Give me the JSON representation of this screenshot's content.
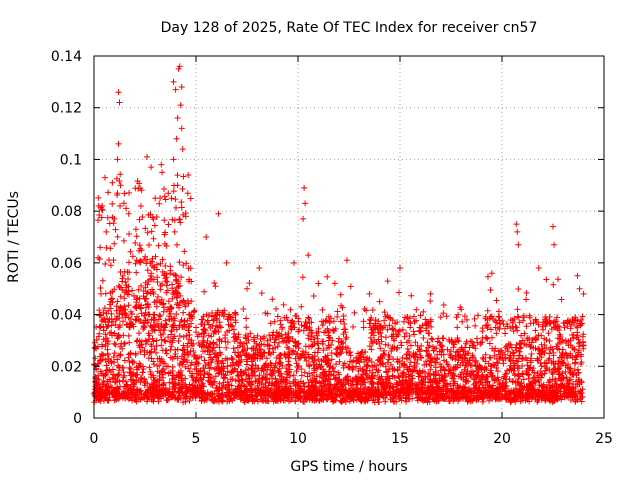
{
  "chart_data": {
    "type": "scatter",
    "title": "Day 128 of 2025, Rate Of TEC Index for receiver cn57",
    "xlabel": "GPS time / hours",
    "ylabel": "ROTI / TECUs",
    "xlim": [
      0,
      25
    ],
    "ylim": [
      0,
      0.14
    ],
    "xticks": [
      0,
      5,
      10,
      15,
      20,
      25
    ],
    "yticks": [
      0,
      0.02,
      0.04,
      0.06,
      0.08,
      0.1,
      0.12,
      0.14
    ],
    "xtick_labels": [
      "0",
      "5",
      "10",
      "15",
      "20",
      "25"
    ],
    "ytick_labels": [
      "0",
      "0.02",
      "0.04",
      "0.06",
      "0.08",
      "0.1",
      "0.12",
      "0.14"
    ],
    "grid": true,
    "legend": "none",
    "marker": "+",
    "color": "#ff0000",
    "data_summary": {
      "x_range_hours": [
        0,
        24
      ],
      "typical_roti_band": [
        0.005,
        0.035
      ],
      "max_roti": 0.136,
      "max_roti_time_hours": 4.2
    },
    "notable_points": [
      {
        "x": 1.2,
        "y": 0.126
      },
      {
        "x": 1.25,
        "y": 0.122
      },
      {
        "x": 1.2,
        "y": 0.106
      },
      {
        "x": 1.15,
        "y": 0.1
      },
      {
        "x": 0.9,
        "y": 0.091
      },
      {
        "x": 1.3,
        "y": 0.09
      },
      {
        "x": 2.6,
        "y": 0.101
      },
      {
        "x": 2.8,
        "y": 0.097
      },
      {
        "x": 3.3,
        "y": 0.098
      },
      {
        "x": 3.9,
        "y": 0.13
      },
      {
        "x": 4.0,
        "y": 0.127
      },
      {
        "x": 4.15,
        "y": 0.135
      },
      {
        "x": 4.2,
        "y": 0.136
      },
      {
        "x": 4.3,
        "y": 0.128
      },
      {
        "x": 4.25,
        "y": 0.121
      },
      {
        "x": 4.1,
        "y": 0.116
      },
      {
        "x": 4.3,
        "y": 0.112
      },
      {
        "x": 4.05,
        "y": 0.108
      },
      {
        "x": 3.9,
        "y": 0.1
      },
      {
        "x": 4.35,
        "y": 0.104
      },
      {
        "x": 4.1,
        "y": 0.09
      },
      {
        "x": 3.8,
        "y": 0.085
      },
      {
        "x": 4.5,
        "y": 0.078
      },
      {
        "x": 6.1,
        "y": 0.079
      },
      {
        "x": 10.3,
        "y": 0.089
      },
      {
        "x": 10.35,
        "y": 0.083
      },
      {
        "x": 10.25,
        "y": 0.077
      },
      {
        "x": 10.5,
        "y": 0.063
      },
      {
        "x": 9.8,
        "y": 0.06
      },
      {
        "x": 8.1,
        "y": 0.058
      },
      {
        "x": 12.4,
        "y": 0.061
      },
      {
        "x": 15.0,
        "y": 0.058
      },
      {
        "x": 13.5,
        "y": 0.048
      },
      {
        "x": 20.7,
        "y": 0.075
      },
      {
        "x": 20.75,
        "y": 0.072
      },
      {
        "x": 20.8,
        "y": 0.067
      },
      {
        "x": 22.5,
        "y": 0.074
      },
      {
        "x": 22.55,
        "y": 0.067
      },
      {
        "x": 21.8,
        "y": 0.058
      },
      {
        "x": 19.5,
        "y": 0.056
      },
      {
        "x": 23.7,
        "y": 0.055
      },
      {
        "x": 23.8,
        "y": 0.05
      },
      {
        "x": 0.3,
        "y": 0.066
      },
      {
        "x": 0.6,
        "y": 0.072
      },
      {
        "x": 1.0,
        "y": 0.077
      },
      {
        "x": 1.7,
        "y": 0.079
      },
      {
        "x": 2.3,
        "y": 0.082
      },
      {
        "x": 3.0,
        "y": 0.085
      },
      {
        "x": 5.5,
        "y": 0.07
      },
      {
        "x": 6.5,
        "y": 0.06
      },
      {
        "x": 7.5,
        "y": 0.05
      },
      {
        "x": 11.0,
        "y": 0.052
      },
      {
        "x": 14.0,
        "y": 0.045
      },
      {
        "x": 16.5,
        "y": 0.048
      },
      {
        "x": 18.0,
        "y": 0.042
      },
      {
        "x": 24.0,
        "y": 0.048
      }
    ]
  }
}
